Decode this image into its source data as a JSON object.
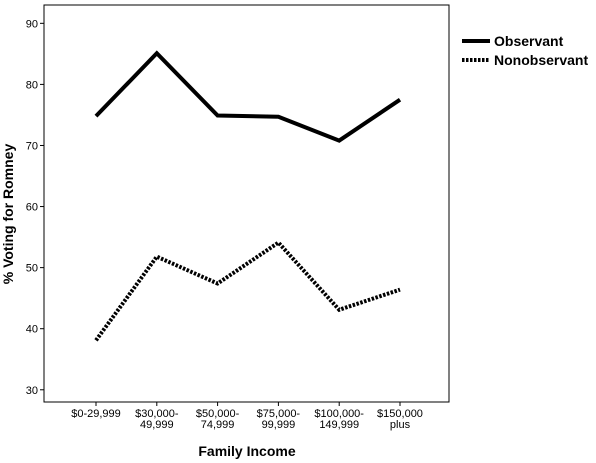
{
  "chart_data": {
    "type": "line",
    "categories": [
      [
        "$0-29,999"
      ],
      [
        "$30,000-",
        "49,999"
      ],
      [
        "$50,000-",
        "74,999"
      ],
      [
        "$75,000-",
        "99,999"
      ],
      [
        "$100,000-",
        "149,999"
      ],
      [
        "$150,000",
        "plus"
      ]
    ],
    "series": [
      {
        "name": "Observant",
        "values": [
          74.8,
          85.1,
          74.9,
          74.7,
          70.8,
          77.5
        ],
        "style": "solid",
        "color": "#000000"
      },
      {
        "name": "Nonobservant",
        "values": [
          38.1,
          51.8,
          47.4,
          54.1,
          43.1,
          46.4
        ],
        "style": "dotted",
        "color": "#000000"
      }
    ],
    "xlabel": "Family Income",
    "ylabel": "% Voting for Romney",
    "yticks": [
      30,
      40,
      50,
      60,
      70,
      80,
      90
    ],
    "ylim": [
      28,
      93
    ],
    "grid": false,
    "legend_position": "right"
  }
}
